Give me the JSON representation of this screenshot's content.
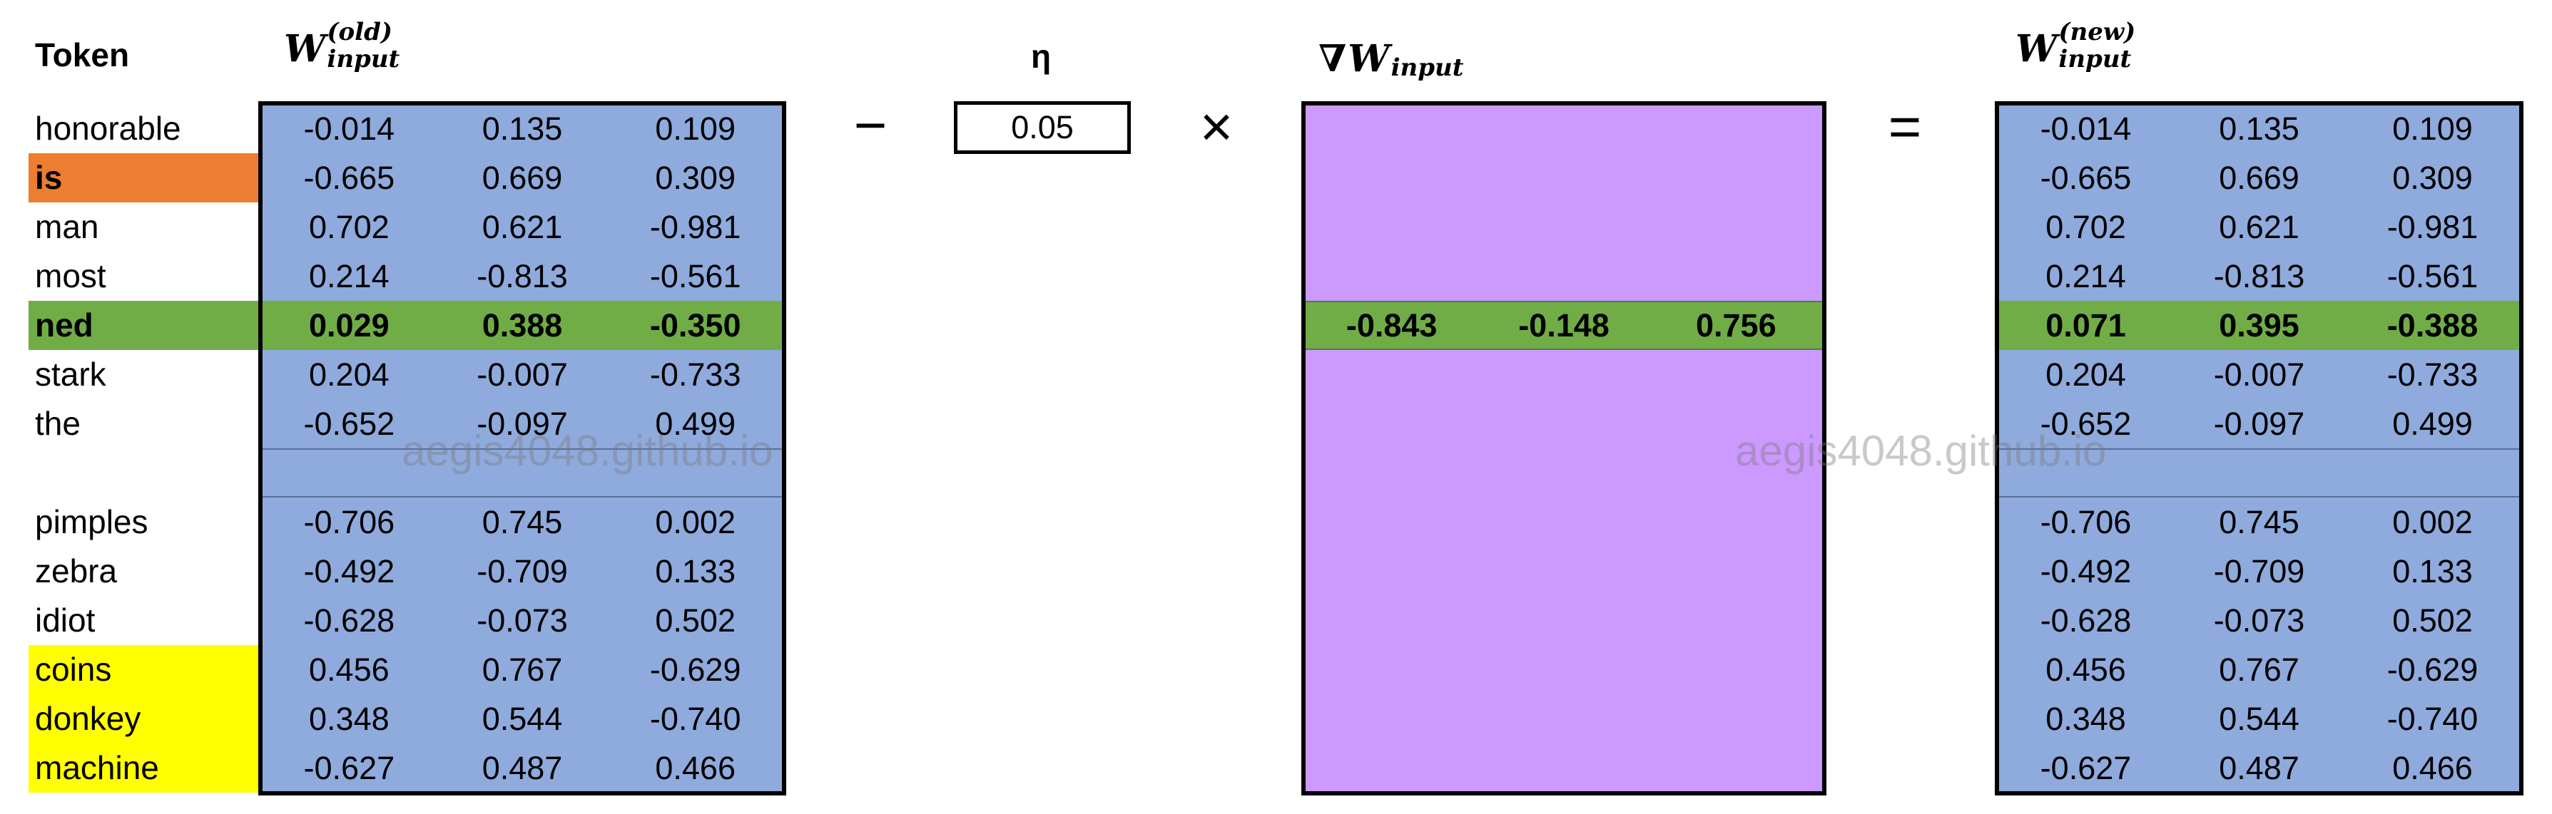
{
  "headers": {
    "token": "Token",
    "w_old": {
      "base": "W",
      "sup": "(old)",
      "sub": "input"
    },
    "eta": "η",
    "grad": {
      "nabla": "∇",
      "base": "W",
      "sub": "input"
    },
    "w_new": {
      "base": "W",
      "sup": "(new)",
      "sub": "input"
    }
  },
  "operators": {
    "minus": "−",
    "times": "×",
    "equals": "="
  },
  "eta_value": "0.05",
  "watermark": "aegis4048.github.io",
  "colors": {
    "matrix_blue": "#8faadc",
    "gradient_purple": "#cc99ff",
    "highlight_green": "#70ad47",
    "context_orange": "#ed7d31",
    "negative_yellow": "#ffff00"
  },
  "tokens": [
    {
      "label": "honorable",
      "role": "none"
    },
    {
      "label": "is",
      "role": "context"
    },
    {
      "label": "man",
      "role": "none"
    },
    {
      "label": "most",
      "role": "none"
    },
    {
      "label": "ned",
      "role": "center"
    },
    {
      "label": "stark",
      "role": "none"
    },
    {
      "label": "the",
      "role": "none"
    },
    {
      "label": "",
      "role": "separator"
    },
    {
      "label": "pimples",
      "role": "none"
    },
    {
      "label": "zebra",
      "role": "none"
    },
    {
      "label": "idiot",
      "role": "none"
    },
    {
      "label": "coins",
      "role": "negative"
    },
    {
      "label": "donkey",
      "role": "negative"
    },
    {
      "label": "machine",
      "role": "negative"
    }
  ],
  "w_old": [
    [
      "-0.014",
      "0.135",
      "0.109"
    ],
    [
      "-0.665",
      "0.669",
      "0.309"
    ],
    [
      "0.702",
      "0.621",
      "-0.981"
    ],
    [
      "0.214",
      "-0.813",
      "-0.561"
    ],
    [
      "0.029",
      "0.388",
      "-0.350"
    ],
    [
      "0.204",
      "-0.007",
      "-0.733"
    ],
    [
      "-0.652",
      "-0.097",
      "0.499"
    ],
    [
      "",
      "",
      ""
    ],
    [
      "-0.706",
      "0.745",
      "0.002"
    ],
    [
      "-0.492",
      "-0.709",
      "0.133"
    ],
    [
      "-0.628",
      "-0.073",
      "0.502"
    ],
    [
      "0.456",
      "0.767",
      "-0.629"
    ],
    [
      "0.348",
      "0.544",
      "-0.740"
    ],
    [
      "-0.627",
      "0.487",
      "0.466"
    ]
  ],
  "gradient_row": [
    "-0.843",
    "-0.148",
    "0.756"
  ],
  "w_new": [
    [
      "-0.014",
      "0.135",
      "0.109"
    ],
    [
      "-0.665",
      "0.669",
      "0.309"
    ],
    [
      "0.702",
      "0.621",
      "-0.981"
    ],
    [
      "0.214",
      "-0.813",
      "-0.561"
    ],
    [
      "0.071",
      "0.395",
      "-0.388"
    ],
    [
      "0.204",
      "-0.007",
      "-0.733"
    ],
    [
      "-0.652",
      "-0.097",
      "0.499"
    ],
    [
      "",
      "",
      ""
    ],
    [
      "-0.706",
      "0.745",
      "0.002"
    ],
    [
      "-0.492",
      "-0.709",
      "0.133"
    ],
    [
      "-0.628",
      "-0.073",
      "0.502"
    ],
    [
      "0.456",
      "0.767",
      "-0.629"
    ],
    [
      "0.348",
      "0.544",
      "-0.740"
    ],
    [
      "-0.627",
      "0.487",
      "0.466"
    ]
  ]
}
